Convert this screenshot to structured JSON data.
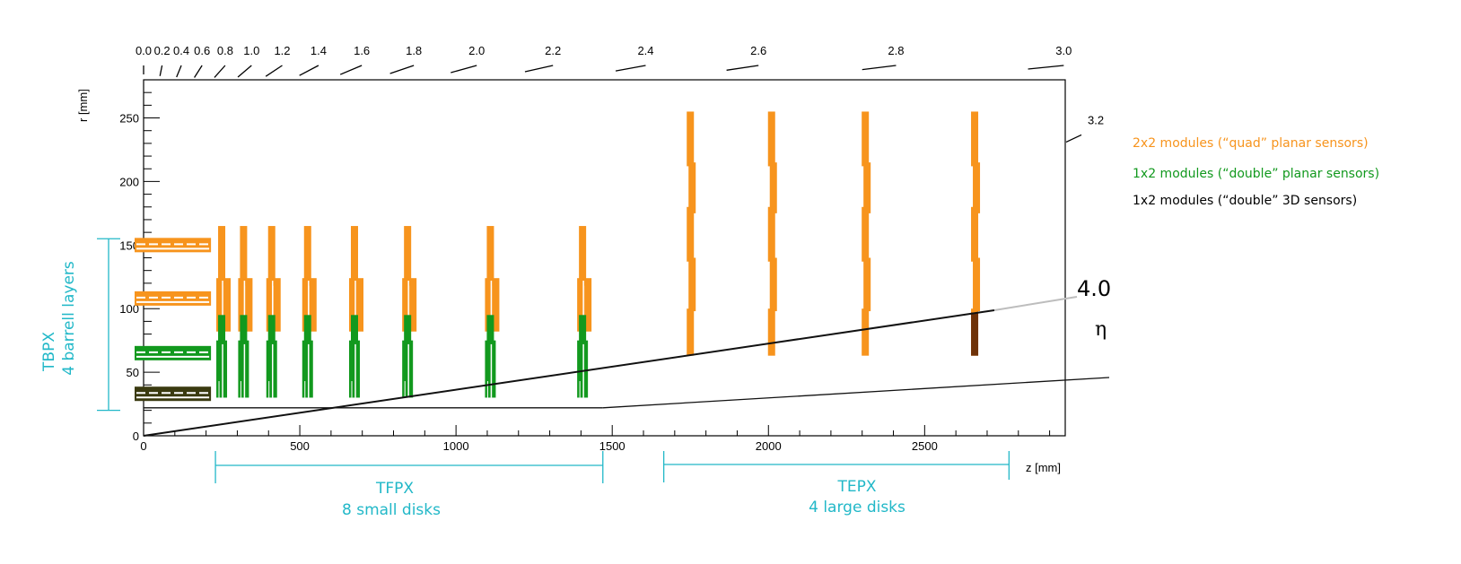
{
  "colors": {
    "quad": "#f7941d",
    "double": "#12991e",
    "threeD": "#3a3a10",
    "threeD_disk": "#6e3208",
    "cyan": "#22b8c8",
    "frame": "#000000",
    "eta40_ext": "#bdbdbd"
  },
  "axes": {
    "x_label": "z [mm]",
    "y_label": "r [mm]",
    "x_range": [
      0,
      2950
    ],
    "y_range": [
      0,
      280
    ],
    "x_ticks": [
      "0",
      "500",
      "1000",
      "1500",
      "2000",
      "2500"
    ],
    "x_tick_values": [
      0,
      500,
      1000,
      1500,
      2000,
      2500
    ],
    "y_ticks": [
      "0",
      "50",
      "100",
      "150",
      "200",
      "250"
    ],
    "y_tick_values": [
      0,
      50,
      100,
      150,
      200,
      250
    ]
  },
  "eta_scale": {
    "labels": [
      "0.0",
      "0.2",
      "0.4",
      "0.6",
      "0.8",
      "1.0",
      "1.2",
      "1.4",
      "1.6",
      "1.8",
      "2.0",
      "2.2",
      "2.4",
      "2.6",
      "2.8",
      "3.0",
      "3.2"
    ],
    "values": [
      0.0,
      0.2,
      0.4,
      0.6,
      0.8,
      1.0,
      1.2,
      1.4,
      1.6,
      1.8,
      2.0,
      2.2,
      2.4,
      2.6,
      2.8,
      3.0,
      3.2
    ],
    "eta40_label": "4.0",
    "eta_symbol": "η"
  },
  "legend": [
    {
      "text": "2x2 modules (“quad” planar sensors)",
      "color_key": "quad"
    },
    {
      "text": "1x2 modules (“double” planar sensors)",
      "color_key": "double"
    },
    {
      "text": "1x2 modules (“double” 3D sensors)",
      "color_key": "frame"
    }
  ],
  "barrel": {
    "title": "TBPX",
    "subtitle": "4 barrell layers",
    "z_max": 210,
    "layers": [
      {
        "r": 150,
        "type": "quad"
      },
      {
        "r": 108,
        "type": "quad"
      },
      {
        "r": 65,
        "type": "double"
      },
      {
        "r": 33,
        "type": "threeD"
      }
    ],
    "r_span": [
      20,
      155
    ]
  },
  "tfpx": {
    "title": "TFPX",
    "subtitle": "8 small disks",
    "z_span": [
      230,
      1470
    ],
    "disks": [
      250,
      320,
      410,
      525,
      675,
      845,
      1110,
      1405
    ],
    "r_quad": [
      82,
      165
    ],
    "r_double": [
      30,
      95
    ]
  },
  "tepx": {
    "title": "TEPX",
    "subtitle": "4 large disks",
    "z_span": [
      1665,
      2770
    ],
    "disks": [
      1750,
      2010,
      2310,
      2660
    ],
    "r_quad": [
      63,
      255
    ],
    "r_3d": [
      63,
      97
    ]
  },
  "beam_pipe": {
    "points": [
      [
        0,
        22
      ],
      [
        1470,
        22
      ],
      [
        2950,
        45
      ]
    ]
  }
}
